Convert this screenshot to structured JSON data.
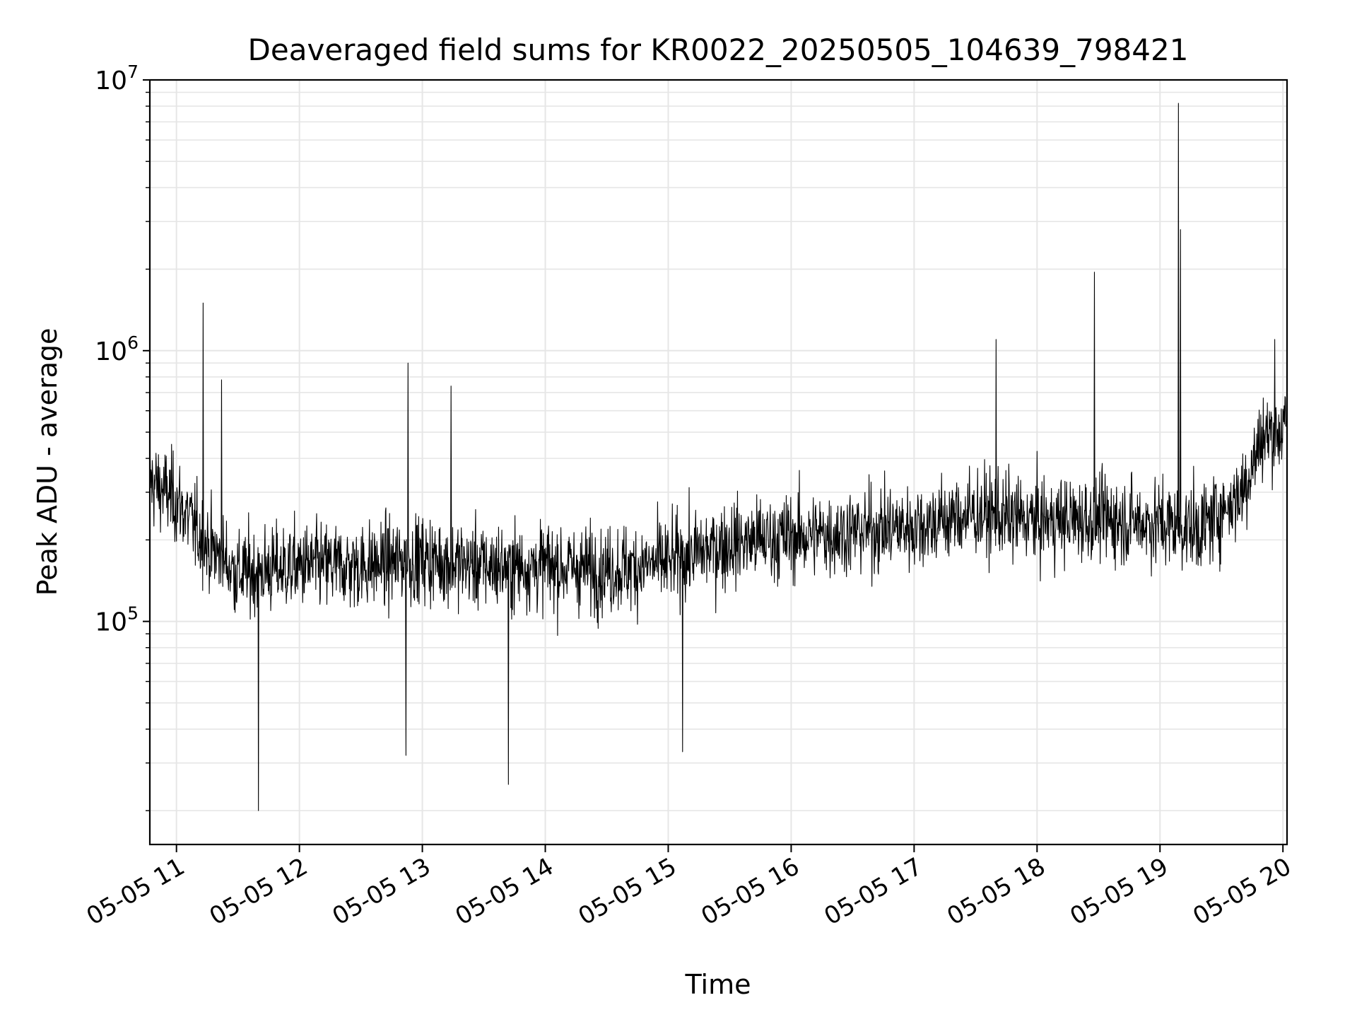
{
  "chart_data": {
    "type": "line",
    "title": "Deaveraged field sums for KR0022_20250505_104639_798421",
    "xlabel": "Time",
    "ylabel": "Peak ADU - average",
    "x_type": "datetime",
    "y_scale": "log",
    "xlim": [
      "2025-05-05 10:47",
      "2025-05-05 20:02"
    ],
    "ylim": [
      15000,
      10000000
    ],
    "x_ticks": [
      "05-05 11",
      "05-05 12",
      "05-05 13",
      "05-05 14",
      "05-05 15",
      "05-05 16",
      "05-05 17",
      "05-05 18",
      "05-05 19",
      "05-05 20"
    ],
    "y_ticks": [
      {
        "value": 100000,
        "base": "10",
        "exp": "5"
      },
      {
        "value": 1000000,
        "base": "10",
        "exp": "6"
      },
      {
        "value": 10000000,
        "base": "10",
        "exp": "7"
      }
    ],
    "grid": true,
    "line_color": "#000000",
    "grid_color": "#e6e6e6",
    "baseline": [
      [
        "2025-05-05 10:47",
        330000
      ],
      [
        "2025-05-05 11:00",
        280000
      ],
      [
        "2025-05-05 11:15",
        190000
      ],
      [
        "2025-05-05 11:30",
        150000
      ],
      [
        "2025-05-05 12:00",
        160000
      ],
      [
        "2025-05-05 12:30",
        160000
      ],
      [
        "2025-05-05 13:00",
        170000
      ],
      [
        "2025-05-05 13:30",
        160000
      ],
      [
        "2025-05-05 14:00",
        160000
      ],
      [
        "2025-05-05 14:30",
        155000
      ],
      [
        "2025-05-05 15:00",
        165000
      ],
      [
        "2025-05-05 15:30",
        195000
      ],
      [
        "2025-05-05 16:00",
        205000
      ],
      [
        "2025-05-05 16:30",
        215000
      ],
      [
        "2025-05-05 17:00",
        225000
      ],
      [
        "2025-05-05 17:30",
        250000
      ],
      [
        "2025-05-05 18:00",
        235000
      ],
      [
        "2025-05-05 18:30",
        240000
      ],
      [
        "2025-05-05 19:00",
        230000
      ],
      [
        "2025-05-05 19:20",
        220000
      ],
      [
        "2025-05-05 19:40",
        300000
      ],
      [
        "2025-05-05 19:50",
        480000
      ],
      [
        "2025-05-05 20:02",
        520000
      ]
    ],
    "spikes": [
      [
        "2025-05-05 11:13",
        1500000
      ],
      [
        "2025-05-05 11:22",
        780000
      ],
      [
        "2025-05-05 11:40",
        20000
      ],
      [
        "2025-05-05 12:53",
        900000
      ],
      [
        "2025-05-05 12:52",
        32000
      ],
      [
        "2025-05-05 13:14",
        740000
      ],
      [
        "2025-05-05 13:42",
        25000
      ],
      [
        "2025-05-05 15:07",
        33000
      ],
      [
        "2025-05-05 17:40",
        1100000
      ],
      [
        "2025-05-05 18:28",
        1950000
      ],
      [
        "2025-05-05 19:09",
        8200000
      ],
      [
        "2025-05-05 19:10",
        2800000
      ],
      [
        "2025-05-05 19:56",
        1100000
      ]
    ]
  }
}
